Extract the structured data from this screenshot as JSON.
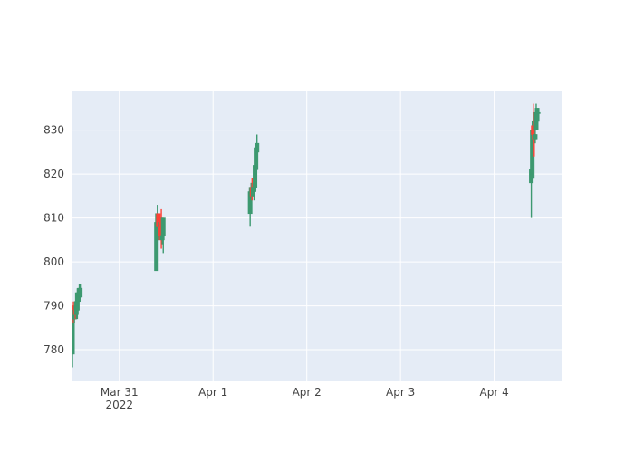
{
  "chart_data": {
    "type": "candlestick",
    "x_axis": {
      "type": "date",
      "range": [
        "2022-03-30 12:00",
        "2022-04-04 17:15"
      ],
      "ticks": [
        {
          "value": "2022-03-31 00:00",
          "label": "Mar 31",
          "sublabel": "2022"
        },
        {
          "value": "2022-04-01 00:00",
          "label": "Apr 1"
        },
        {
          "value": "2022-04-02 00:00",
          "label": "Apr 2"
        },
        {
          "value": "2022-04-03 00:00",
          "label": "Apr 3"
        },
        {
          "value": "2022-04-04 00:00",
          "label": "Apr 4"
        }
      ]
    },
    "y_axis": {
      "range": [
        773,
        839
      ],
      "ticks": [
        780,
        790,
        800,
        810,
        820,
        830
      ]
    },
    "grid": true,
    "colors": {
      "increasing": "#3d9970",
      "decreasing": "#ff4136",
      "plot_bg": "#e5ecf6",
      "grid": "#ffffff",
      "tick_text": "#444444"
    },
    "candles": [
      {
        "t": "2022-03-30 12:00",
        "o": 779,
        "h": 790,
        "l": 776,
        "c": 790
      },
      {
        "t": "2022-03-30 12:15",
        "o": 790,
        "h": 791,
        "l": 786,
        "c": 787
      },
      {
        "t": "2022-03-30 12:30",
        "o": 787,
        "h": 790,
        "l": 786,
        "c": 789
      },
      {
        "t": "2022-03-30 12:45",
        "o": 789,
        "h": 791,
        "l": 787,
        "c": 788
      },
      {
        "t": "2022-03-30 13:00",
        "o": 788,
        "h": 793,
        "l": 787,
        "c": 791
      },
      {
        "t": "2022-03-30 13:15",
        "o": 789,
        "h": 794,
        "l": 787,
        "c": 793
      },
      {
        "t": "2022-03-30 13:30",
        "o": 791,
        "h": 794,
        "l": 790,
        "c": 793
      },
      {
        "t": "2022-03-30 13:45",
        "o": 792,
        "h": 795,
        "l": 792,
        "c": 794
      },
      {
        "t": "2022-03-30 14:00",
        "o": 792,
        "h": 795,
        "l": 792,
        "c": 794
      },
      {
        "t": "2022-03-31 09:30",
        "o": 798,
        "h": 811,
        "l": 798,
        "c": 809
      },
      {
        "t": "2022-03-31 09:45",
        "o": 805,
        "h": 813,
        "l": 803,
        "c": 811
      },
      {
        "t": "2022-03-31 10:00",
        "o": 811,
        "h": 811,
        "l": 806,
        "c": 808
      },
      {
        "t": "2022-03-31 10:15",
        "o": 810,
        "h": 810,
        "l": 808,
        "c": 808
      },
      {
        "t": "2022-03-31 10:30",
        "o": 808,
        "h": 810,
        "l": 808,
        "c": 809
      },
      {
        "t": "2022-03-31 10:45",
        "o": 810,
        "h": 812,
        "l": 803,
        "c": 805
      },
      {
        "t": "2022-03-31 11:00",
        "o": 805,
        "h": 808,
        "l": 804,
        "c": 806
      },
      {
        "t": "2022-03-31 11:15",
        "o": 806,
        "h": 810,
        "l": 802,
        "c": 810
      },
      {
        "t": "2022-04-01 09:30",
        "o": 811,
        "h": 817,
        "l": 808,
        "c": 816
      },
      {
        "t": "2022-04-01 09:45",
        "o": 815,
        "h": 818,
        "l": 814,
        "c": 817
      },
      {
        "t": "2022-04-01 10:00",
        "o": 817,
        "h": 819,
        "l": 814,
        "c": 815
      },
      {
        "t": "2022-04-01 10:15",
        "o": 815,
        "h": 818,
        "l": 815,
        "c": 817
      },
      {
        "t": "2022-04-01 10:30",
        "o": 816,
        "h": 818,
        "l": 814,
        "c": 817
      },
      {
        "t": "2022-04-01 10:45",
        "o": 817,
        "h": 825,
        "l": 816,
        "c": 822
      },
      {
        "t": "2022-04-01 11:00",
        "o": 821,
        "h": 826,
        "l": 821,
        "c": 826
      },
      {
        "t": "2022-04-01 11:15",
        "o": 825,
        "h": 829,
        "l": 825,
        "c": 827
      },
      {
        "t": "2022-04-04 09:30",
        "o": 818,
        "h": 826,
        "l": 810,
        "c": 821
      },
      {
        "t": "2022-04-04 09:45",
        "o": 819,
        "h": 832,
        "l": 818,
        "c": 830
      },
      {
        "t": "2022-04-04 10:00",
        "o": 831,
        "h": 836,
        "l": 829,
        "c": 829
      },
      {
        "t": "2022-04-04 10:15",
        "o": 829,
        "h": 832,
        "l": 824,
        "c": 828
      },
      {
        "t": "2022-04-04 10:30",
        "o": 828,
        "h": 831,
        "l": 827,
        "c": 829
      },
      {
        "t": "2022-04-04 10:45",
        "o": 830,
        "h": 836,
        "l": 830,
        "c": 834
      },
      {
        "t": "2022-04-04 11:00",
        "o": 832,
        "h": 835,
        "l": 832,
        "c": 835
      },
      {
        "t": "2022-04-04 11:15",
        "o": 834,
        "h": 835,
        "l": 834,
        "c": 834
      }
    ]
  }
}
